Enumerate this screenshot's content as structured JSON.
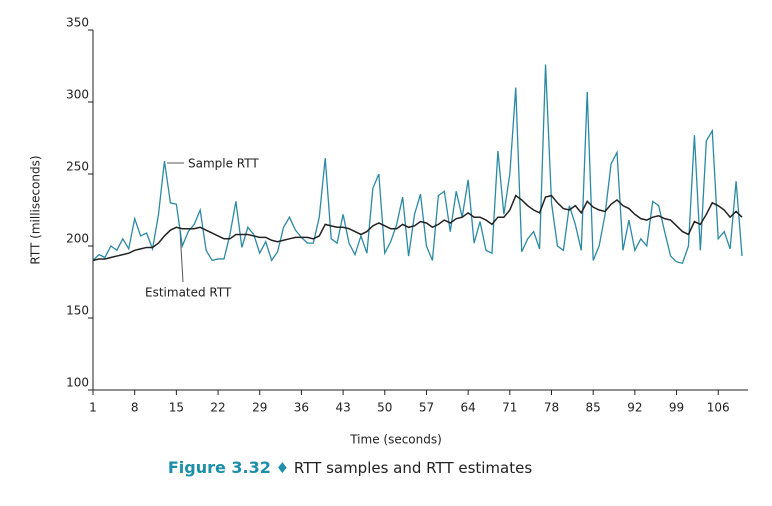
{
  "chart_data": {
    "type": "line",
    "x_label": "Time (seconds)",
    "y_label": "RTT (milliseconds)",
    "caption_label": "Figure 3.32",
    "caption_separator": "♦",
    "caption": "RTT samples and RTT estimates",
    "x": [
      1,
      2,
      3,
      4,
      5,
      6,
      7,
      8,
      9,
      10,
      11,
      12,
      13,
      14,
      15,
      16,
      17,
      18,
      19,
      20,
      21,
      22,
      23,
      24,
      25,
      26,
      27,
      28,
      29,
      30,
      31,
      32,
      33,
      34,
      35,
      36,
      37,
      38,
      39,
      40,
      41,
      42,
      43,
      44,
      45,
      46,
      47,
      48,
      49,
      50,
      51,
      52,
      53,
      54,
      55,
      56,
      57,
      58,
      59,
      60,
      61,
      62,
      63,
      64,
      65,
      66,
      67,
      68,
      69,
      70,
      71,
      72,
      73,
      74,
      75,
      76,
      77,
      78,
      79,
      80,
      81,
      82,
      83,
      84,
      85,
      86,
      87,
      88,
      89,
      90,
      91,
      92,
      93,
      94,
      95,
      96,
      97,
      98,
      99,
      100,
      101,
      102,
      103,
      104,
      105,
      106,
      107,
      108,
      109,
      110
    ],
    "series": [
      {
        "name": "Sample RTT",
        "color": "#2a8aa6",
        "values": [
          190,
          194,
          192,
          200,
          197,
          205,
          198,
          219,
          207,
          209,
          198,
          222,
          259,
          230,
          229,
          200,
          210,
          215,
          225,
          197,
          190,
          191,
          191,
          208,
          231,
          199,
          213,
          208,
          195,
          203,
          190,
          196,
          213,
          220,
          211,
          206,
          202,
          202,
          220,
          261,
          205,
          202,
          222,
          202,
          194,
          207,
          195,
          240,
          250,
          195,
          203,
          215,
          234,
          193,
          222,
          236,
          200,
          190,
          235,
          238,
          210,
          238,
          220,
          246,
          202,
          217,
          197,
          195,
          266,
          222,
          250,
          310,
          196,
          205,
          210,
          198,
          326,
          230,
          200,
          197,
          228,
          215,
          197,
          307,
          190,
          200,
          222,
          257,
          265,
          197,
          218,
          197,
          205,
          200,
          231,
          228,
          210,
          193,
          189,
          188,
          200,
          277,
          197,
          273,
          280,
          205,
          210,
          198,
          245,
          193
        ]
      },
      {
        "name": "Estimated RTT",
        "color": "#222222",
        "values": [
          190,
          191,
          191,
          192,
          193,
          194,
          195,
          197,
          198,
          199,
          199,
          202,
          207,
          211,
          213,
          212,
          212,
          212,
          213,
          211,
          209,
          207,
          205,
          205,
          208,
          208,
          208,
          207,
          206,
          206,
          204,
          203,
          204,
          205,
          206,
          206,
          206,
          205,
          207,
          215,
          214,
          213,
          213,
          212,
          210,
          208,
          210,
          214,
          216,
          214,
          212,
          212,
          215,
          213,
          214,
          217,
          216,
          213,
          215,
          218,
          216,
          219,
          220,
          223,
          220,
          220,
          218,
          215,
          220,
          220,
          225,
          235,
          232,
          228,
          225,
          223,
          234,
          235,
          230,
          226,
          225,
          228,
          223,
          231,
          227,
          225,
          224,
          229,
          232,
          228,
          226,
          222,
          219,
          218,
          220,
          221,
          219,
          218,
          214,
          210,
          208,
          217,
          215,
          222,
          230,
          228,
          225,
          220,
          224,
          220
        ]
      }
    ],
    "xlim": [
      1,
      111
    ],
    "ylim": [
      100,
      350
    ],
    "xticks": [
      1,
      8,
      15,
      22,
      29,
      36,
      43,
      50,
      57,
      64,
      71,
      78,
      85,
      92,
      99,
      106
    ],
    "yticks": [
      100,
      150,
      200,
      250,
      300,
      350
    ]
  }
}
